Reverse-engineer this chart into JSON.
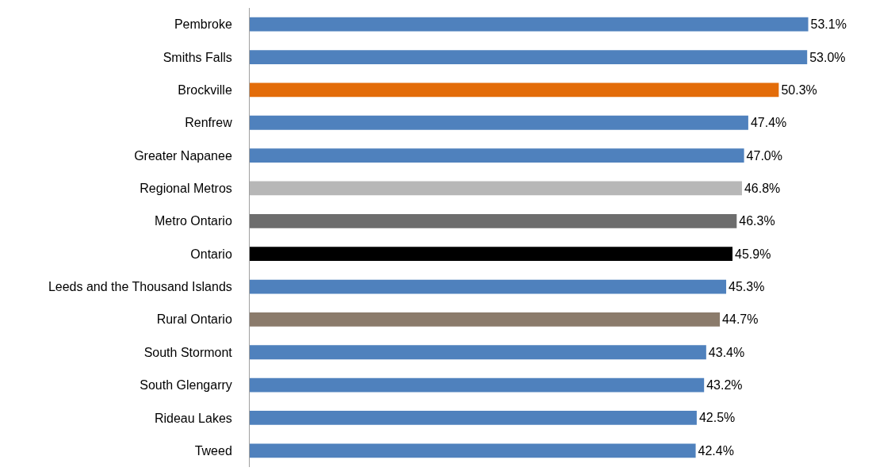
{
  "chart_data": {
    "type": "bar",
    "orientation": "horizontal",
    "categories": [
      "Pembroke",
      "Smiths Falls",
      "Brockville",
      "Renfrew",
      "Greater Napanee",
      "Regional Metros",
      "Metro Ontario",
      "Ontario",
      "Leeds and the Thousand Islands",
      "Rural Ontario",
      "South Stormont",
      "South Glengarry",
      "Rideau Lakes",
      "Tweed"
    ],
    "values": [
      53.1,
      53.0,
      50.3,
      47.4,
      47.0,
      46.8,
      46.3,
      45.9,
      45.3,
      44.7,
      43.4,
      43.2,
      42.5,
      42.4
    ],
    "value_labels": [
      "53.1%",
      "53.0%",
      "50.3%",
      "47.4%",
      "47.0%",
      "46.8%",
      "46.3%",
      "45.9%",
      "45.3%",
      "44.7%",
      "43.4%",
      "43.2%",
      "42.5%",
      "42.4%"
    ],
    "colors": [
      "#4f81bd",
      "#4f81bd",
      "#e36c09",
      "#4f81bd",
      "#4f81bd",
      "#b7b7b7",
      "#6d6d6d",
      "#000000",
      "#4f81bd",
      "#8b7b6b",
      "#4f81bd",
      "#4f81bd",
      "#4f81bd",
      "#4f81bd"
    ],
    "data_labels": false
  }
}
